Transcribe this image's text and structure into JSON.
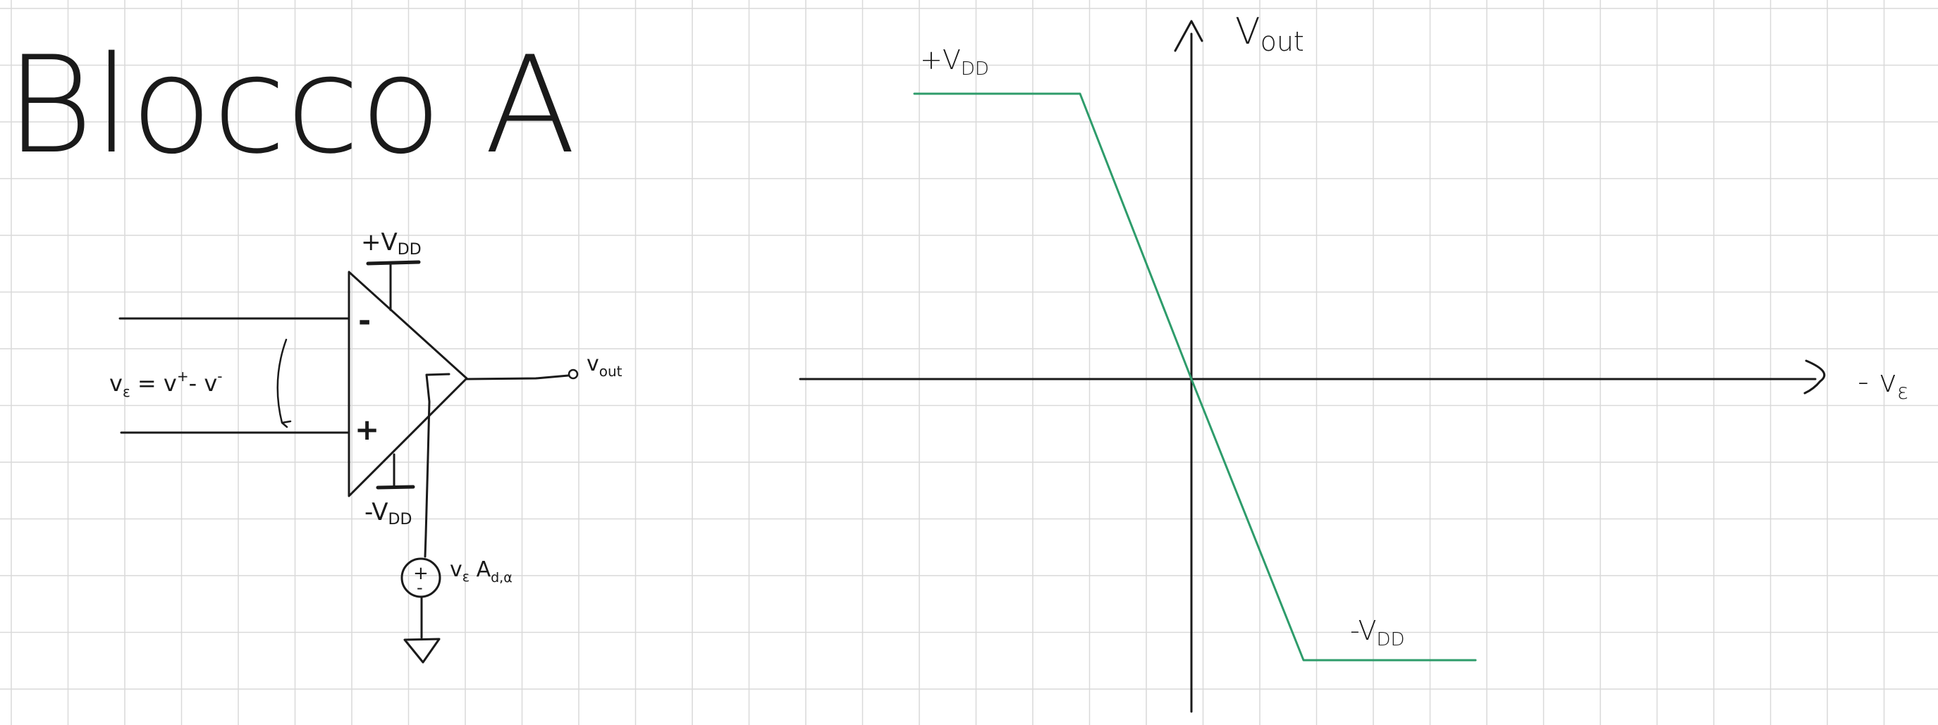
{
  "title": "Blocco A",
  "opamp": {
    "supply_pos": "+V",
    "supply_pos_sub": "DD",
    "supply_neg": "-V",
    "supply_neg_sub": "DD",
    "minus_sign": "-",
    "plus_sign": "+",
    "input_eq_v": "v",
    "input_eq_sub": "ε",
    "input_eq_rest": " = v",
    "input_eq_sup1": "+",
    "input_eq_mid": "- v",
    "input_eq_sup2": "-",
    "output_v": "v",
    "output_sub": "out",
    "source_plus": "+",
    "source_minus": "-",
    "source_v": "v",
    "source_eps": "ε",
    "source_a": " A",
    "source_sub": "d,α"
  },
  "transfer": {
    "y_label_v": "V",
    "y_label_sub": "out",
    "x_label": "- v",
    "x_label_sub": "ε",
    "pos_sat": "+V",
    "pos_sat_sub": "DD",
    "neg_sat": "-V",
    "neg_sat_sub": "DD"
  },
  "colors": {
    "ink": "#1a1a1a",
    "curve": "#2e9c6b",
    "grid": "#d9d9d9"
  }
}
